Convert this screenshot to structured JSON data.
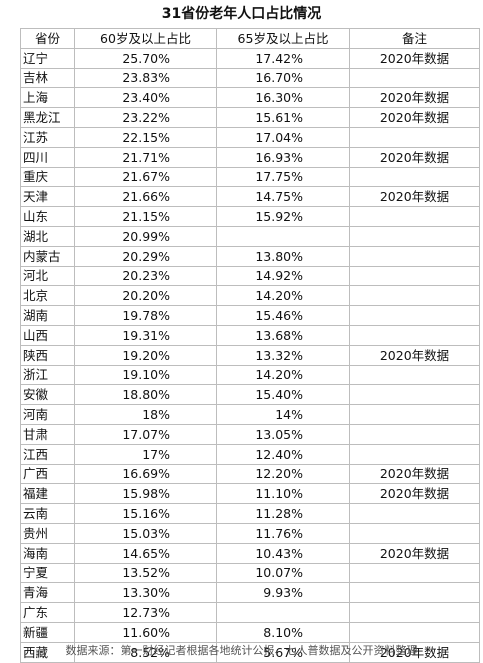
{
  "title": "31省份老年人口占比情况",
  "headers": [
    "省份",
    "60岁及以上占比",
    "65岁及以上占比",
    "备注"
  ],
  "rows": [
    {
      "province": "辽宁",
      "pct60": "25.70%",
      "pct65": "17.42%",
      "note": "2020年数据"
    },
    {
      "province": "吉林",
      "pct60": "23.83%",
      "pct65": "16.70%",
      "note": ""
    },
    {
      "province": "上海",
      "pct60": "23.40%",
      "pct65": "16.30%",
      "note": "2020年数据"
    },
    {
      "province": "黑龙江",
      "pct60": "23.22%",
      "pct65": "15.61%",
      "note": "2020年数据"
    },
    {
      "province": "江苏",
      "pct60": "22.15%",
      "pct65": "17.04%",
      "note": ""
    },
    {
      "province": "四川",
      "pct60": "21.71%",
      "pct65": "16.93%",
      "note": "2020年数据"
    },
    {
      "province": "重庆",
      "pct60": "21.67%",
      "pct65": "17.75%",
      "note": ""
    },
    {
      "province": "天津",
      "pct60": "21.66%",
      "pct65": "14.75%",
      "note": "2020年数据"
    },
    {
      "province": "山东",
      "pct60": "21.15%",
      "pct65": "15.92%",
      "note": ""
    },
    {
      "province": "湖北",
      "pct60": "20.99%",
      "pct65": "",
      "note": ""
    },
    {
      "province": "内蒙古",
      "pct60": "20.29%",
      "pct65": "13.80%",
      "note": ""
    },
    {
      "province": "河北",
      "pct60": "20.23%",
      "pct65": "14.92%",
      "note": ""
    },
    {
      "province": "北京",
      "pct60": "20.20%",
      "pct65": "14.20%",
      "note": ""
    },
    {
      "province": "湖南",
      "pct60": "19.78%",
      "pct65": "15.46%",
      "note": ""
    },
    {
      "province": "山西",
      "pct60": "19.31%",
      "pct65": "13.68%",
      "note": ""
    },
    {
      "province": "陕西",
      "pct60": "19.20%",
      "pct65": "13.32%",
      "note": "2020年数据"
    },
    {
      "province": "浙江",
      "pct60": "19.10%",
      "pct65": "14.20%",
      "note": ""
    },
    {
      "province": "安徽",
      "pct60": "18.80%",
      "pct65": "15.40%",
      "note": ""
    },
    {
      "province": "河南",
      "pct60": "18%",
      "pct65": "14%",
      "note": ""
    },
    {
      "province": "甘肃",
      "pct60": "17.07%",
      "pct65": "13.05%",
      "note": ""
    },
    {
      "province": "江西",
      "pct60": "17%",
      "pct65": "12.40%",
      "note": ""
    },
    {
      "province": "广西",
      "pct60": "16.69%",
      "pct65": "12.20%",
      "note": "2020年数据"
    },
    {
      "province": "福建",
      "pct60": "15.98%",
      "pct65": "11.10%",
      "note": "2020年数据"
    },
    {
      "province": "云南",
      "pct60": "15.16%",
      "pct65": "11.28%",
      "note": ""
    },
    {
      "province": "贵州",
      "pct60": "15.03%",
      "pct65": "11.76%",
      "note": ""
    },
    {
      "province": "海南",
      "pct60": "14.65%",
      "pct65": "10.43%",
      "note": "2020年数据"
    },
    {
      "province": "宁夏",
      "pct60": "13.52%",
      "pct65": "10.07%",
      "note": ""
    },
    {
      "province": "青海",
      "pct60": "13.30%",
      "pct65": "9.93%",
      "note": ""
    },
    {
      "province": "广东",
      "pct60": "12.73%",
      "pct65": "",
      "note": ""
    },
    {
      "province": "新疆",
      "pct60": "11.60%",
      "pct65": "8.10%",
      "note": ""
    },
    {
      "province": "西藏",
      "pct60": "8.52%",
      "pct65": "5.67%",
      "note": "2020年数据"
    }
  ],
  "footer": "数据来源：第一财经记者根据各地统计公报、七人普数据及公开资料整理"
}
